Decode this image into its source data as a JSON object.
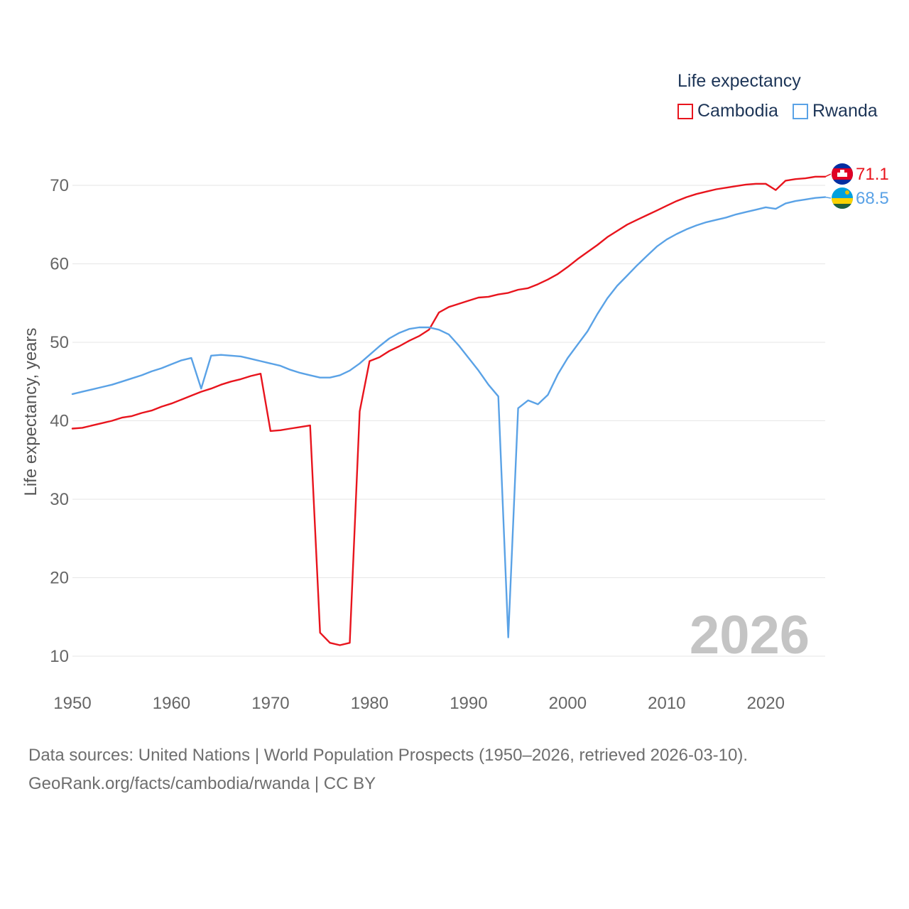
{
  "legend": {
    "title": "Life expectancy",
    "items": [
      {
        "name": "Cambodia",
        "color": "#e8141d"
      },
      {
        "name": "Rwanda",
        "color": "#5aa2e6"
      }
    ]
  },
  "footer": {
    "sources": "Data sources: United Nations | World Population Prospects (1950–2026, retrieved 2026-03-10).",
    "credit": "GeoRank.org/facts/cambodia/rwanda | CC BY"
  },
  "chart_data": {
    "type": "line",
    "title": "Life expectancy",
    "xlabel": "",
    "ylabel": "Life expectancy, years",
    "xlim": [
      1950,
      2026
    ],
    "ylim": [
      10,
      75
    ],
    "x_ticks": [
      1950,
      1960,
      1970,
      1980,
      1990,
      2000,
      2010,
      2020
    ],
    "y_ticks": [
      10,
      20,
      30,
      40,
      50,
      60,
      70
    ],
    "grid": true,
    "legend_position": "top-right",
    "year_stamp": "2026",
    "x": [
      1950,
      1951,
      1952,
      1953,
      1954,
      1955,
      1956,
      1957,
      1958,
      1959,
      1960,
      1961,
      1962,
      1963,
      1964,
      1965,
      1966,
      1967,
      1968,
      1969,
      1970,
      1971,
      1972,
      1973,
      1974,
      1975,
      1976,
      1977,
      1978,
      1979,
      1980,
      1981,
      1982,
      1983,
      1984,
      1985,
      1986,
      1987,
      1988,
      1989,
      1990,
      1991,
      1992,
      1993,
      1994,
      1995,
      1996,
      1997,
      1998,
      1999,
      2000,
      2001,
      2002,
      2003,
      2004,
      2005,
      2006,
      2007,
      2008,
      2009,
      2010,
      2011,
      2012,
      2013,
      2014,
      2015,
      2016,
      2017,
      2018,
      2019,
      2020,
      2021,
      2022,
      2023,
      2024,
      2025,
      2026
    ],
    "series": [
      {
        "name": "Cambodia",
        "color": "#e8141d",
        "end_label": "71.1",
        "flag": "cambodia-flag",
        "values": [
          39.0,
          39.1,
          39.4,
          39.7,
          40.0,
          40.4,
          40.6,
          41.0,
          41.3,
          41.8,
          42.2,
          42.7,
          43.2,
          43.7,
          44.1,
          44.6,
          45.0,
          45.3,
          45.7,
          46.0,
          38.7,
          38.8,
          39.0,
          39.2,
          39.4,
          13.0,
          11.7,
          11.4,
          11.7,
          41.2,
          47.6,
          48.1,
          48.9,
          49.5,
          50.2,
          50.8,
          51.6,
          53.8,
          54.5,
          54.9,
          55.3,
          55.7,
          55.8,
          56.1,
          56.3,
          56.7,
          56.9,
          57.4,
          58.0,
          58.7,
          59.6,
          60.6,
          61.5,
          62.4,
          63.4,
          64.2,
          65.0,
          65.6,
          66.2,
          66.8,
          67.4,
          68.0,
          68.5,
          68.9,
          69.2,
          69.5,
          69.7,
          69.9,
          70.1,
          70.2,
          70.2,
          69.4,
          70.6,
          70.8,
          70.9,
          71.1,
          71.1
        ]
      },
      {
        "name": "Rwanda",
        "color": "#5aa2e6",
        "end_label": "68.5",
        "flag": "rwanda-flag",
        "values": [
          43.4,
          43.7,
          44.0,
          44.3,
          44.6,
          45.0,
          45.4,
          45.8,
          46.3,
          46.7,
          47.2,
          47.7,
          48.0,
          44.1,
          48.3,
          48.4,
          48.3,
          48.2,
          47.9,
          47.6,
          47.3,
          47.0,
          46.5,
          46.1,
          45.8,
          45.5,
          45.5,
          45.8,
          46.4,
          47.3,
          48.4,
          49.5,
          50.5,
          51.2,
          51.7,
          51.9,
          51.9,
          51.6,
          51.0,
          49.6,
          48.0,
          46.4,
          44.6,
          43.1,
          12.4,
          41.6,
          42.6,
          42.1,
          43.3,
          45.9,
          48.0,
          49.7,
          51.4,
          53.6,
          55.6,
          57.2,
          58.5,
          59.8,
          61.0,
          62.2,
          63.1,
          63.8,
          64.4,
          64.9,
          65.3,
          65.6,
          65.9,
          66.3,
          66.6,
          66.9,
          67.2,
          67.0,
          67.7,
          68.0,
          68.2,
          68.4,
          68.5
        ]
      }
    ]
  }
}
